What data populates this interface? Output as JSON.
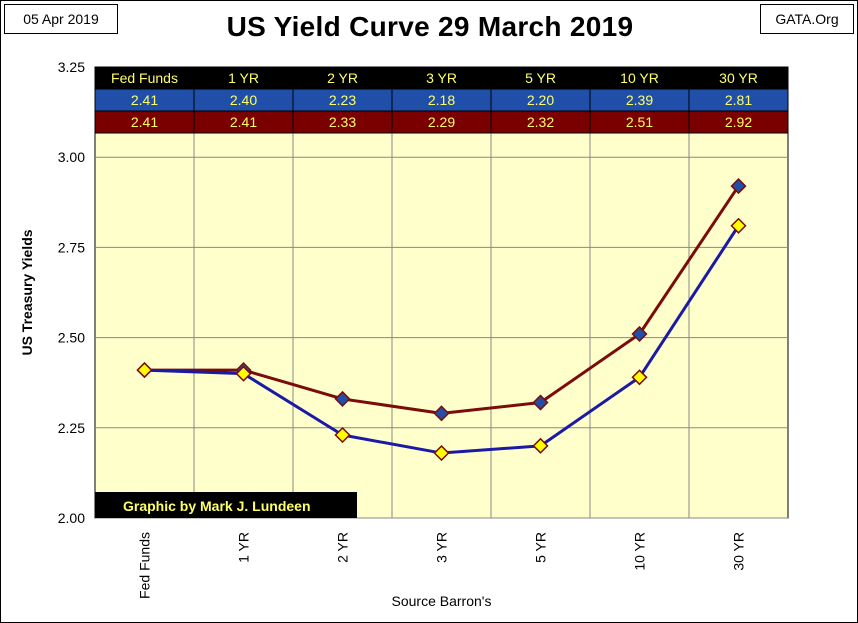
{
  "header": {
    "date": "05 Apr 2019",
    "title": "US Yield Curve 29 March 2019",
    "source_site": "GATA.Org"
  },
  "credit": "Graphic by Mark J. Lundeen",
  "colors": {
    "plot_bg": "#ffffcc",
    "series_current": "#1a1aa6",
    "series_prior": "#7a0c0c",
    "marker_current": "#ffff00",
    "marker_prior": "#1f4fa8",
    "table_header": "#000000",
    "table_row_current": "#1f4fa8",
    "table_row_prior": "#7a0000",
    "table_text": "#ffff66"
  },
  "chart_data": {
    "type": "line",
    "title": "US Yield Curve 29 March 2019",
    "xlabel": "Source Barron's",
    "ylabel": "US Treasury Yields",
    "categories": [
      "Fed Funds",
      "1 YR",
      "2 YR",
      "3 YR",
      "5 YR",
      "10 YR",
      "30 YR"
    ],
    "ylim": [
      2.0,
      3.25
    ],
    "yticks": [
      "2.00",
      "2.25",
      "2.50",
      "2.75",
      "3.00",
      "3.25"
    ],
    "grid": true,
    "series": [
      {
        "name": "current",
        "values": [
          2.41,
          2.4,
          2.23,
          2.18,
          2.2,
          2.39,
          2.81
        ],
        "labels": [
          "2.41",
          "2.40",
          "2.23",
          "2.18",
          "2.20",
          "2.39",
          "2.81"
        ]
      },
      {
        "name": "prior",
        "values": [
          2.41,
          2.41,
          2.33,
          2.29,
          2.32,
          2.51,
          2.92
        ],
        "labels": [
          "2.41",
          "2.41",
          "2.33",
          "2.29",
          "2.32",
          "2.51",
          "2.92"
        ]
      }
    ]
  }
}
